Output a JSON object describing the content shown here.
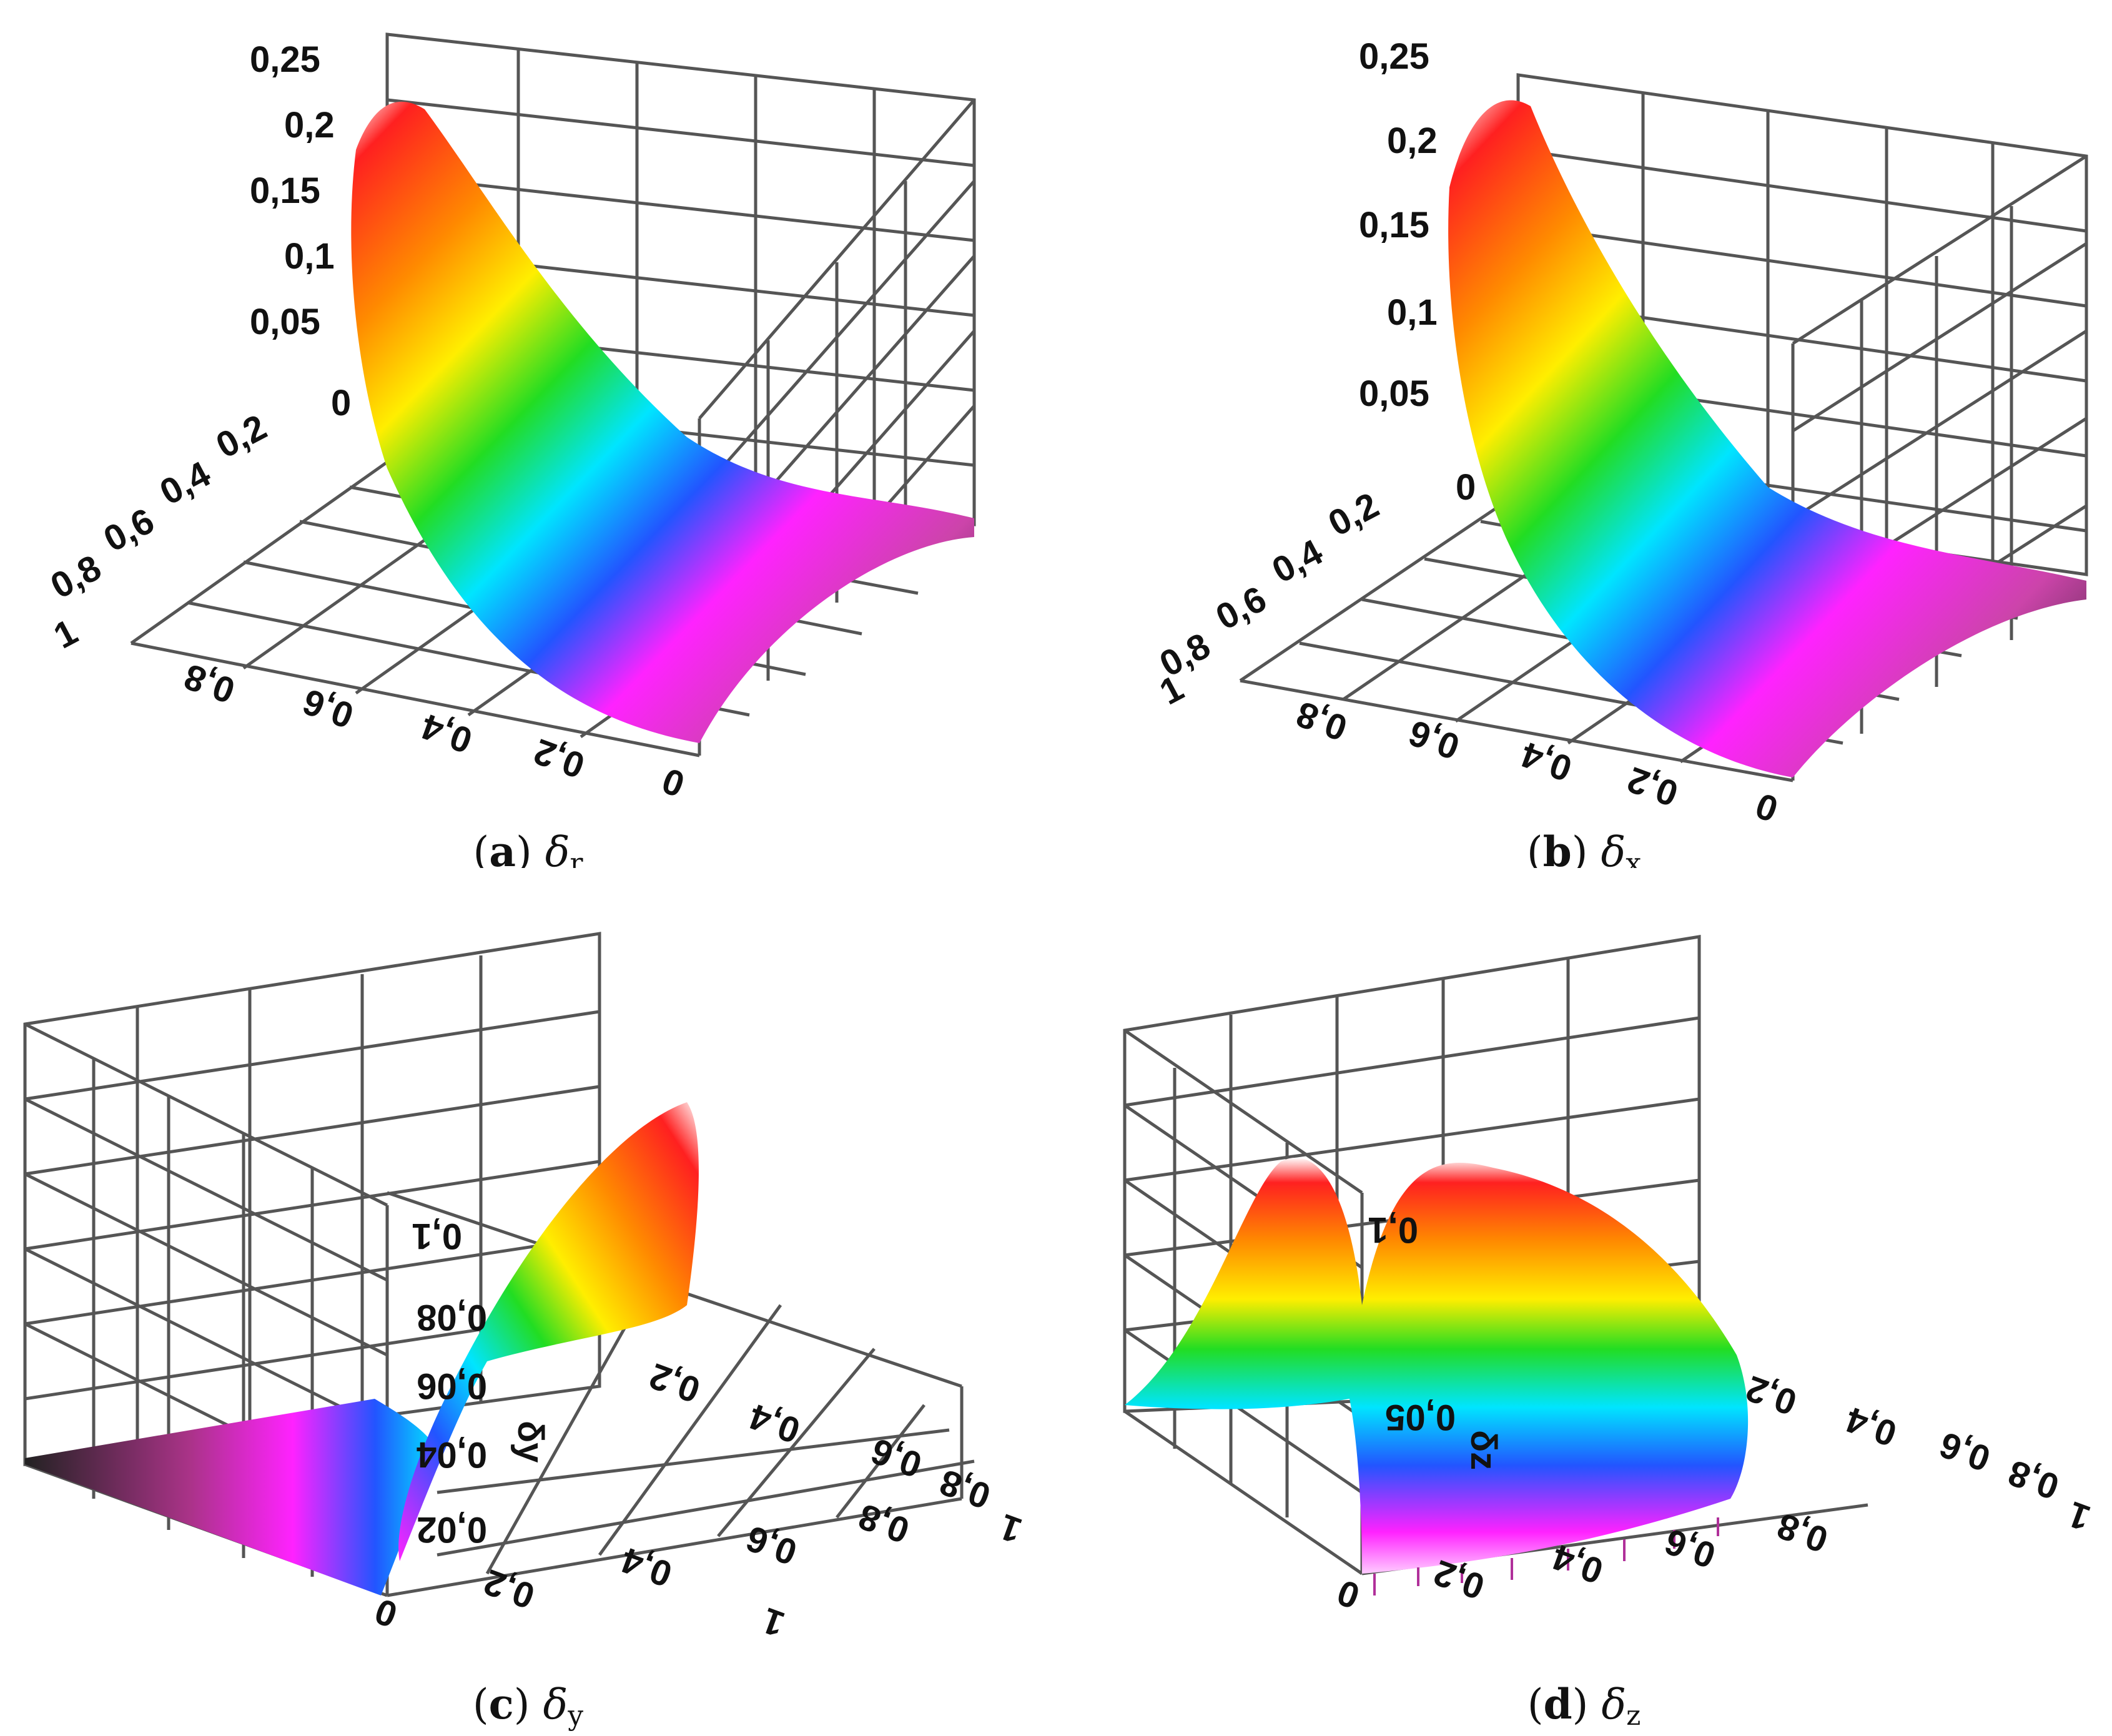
{
  "figure": {
    "panels": [
      {
        "key": "a",
        "tag": "a",
        "symbol": "δ",
        "subscript": "r"
      },
      {
        "key": "b",
        "tag": "b",
        "symbol": "δ",
        "subscript": "x"
      },
      {
        "key": "c",
        "tag": "c",
        "symbol": "δ",
        "subscript": "y"
      },
      {
        "key": "d",
        "tag": "d",
        "symbol": "δ",
        "subscript": "z"
      }
    ]
  },
  "chart_data": [
    {
      "type": "surface",
      "panel": "a",
      "caption": "(a) δr",
      "colormap": "rainbow (red high → black low)",
      "z_ticks": [
        "0",
        "0,05",
        "0,1",
        "0,15",
        "0,2",
        "0,25"
      ],
      "x_ticks": [
        "0,2",
        "0,4",
        "0,6",
        "0,8",
        "1"
      ],
      "y_ticks": [
        "0",
        "0,2",
        "0,4",
        "0,6",
        "0,8"
      ],
      "zlim": [
        0,
        0.25
      ],
      "surface_peak_z": 0.25,
      "grid": true
    },
    {
      "type": "surface",
      "panel": "b",
      "caption": "(b) δx",
      "colormap": "rainbow (red high → black low)",
      "z_ticks": [
        "0",
        "0,05",
        "0,1",
        "0,15",
        "0,2",
        "0,25"
      ],
      "x_ticks": [
        "0,2",
        "0,4",
        "0,6",
        "0,8",
        "1"
      ],
      "y_ticks": [
        "0",
        "0,2",
        "0,4",
        "0,6",
        "0,8"
      ],
      "zlim": [
        0,
        0.25
      ],
      "surface_peak_z": 0.25,
      "grid": true
    },
    {
      "type": "surface",
      "panel": "c",
      "caption": "(c) δy",
      "colormap": "rainbow (red high → black low)",
      "z_ticks": [
        "0,02",
        "0,04",
        "0,06",
        "0,08",
        "0,1"
      ],
      "axis_mark": "δy",
      "x_ticks": [
        "0,2",
        "0,4",
        "0,6",
        "0,8",
        "1"
      ],
      "y_ticks": [
        "0",
        "0,2",
        "0,4",
        "0,6",
        "0,8",
        "1"
      ],
      "zlim": [
        0,
        0.1
      ],
      "grid": true
    },
    {
      "type": "surface",
      "panel": "d",
      "caption": "(d) δz",
      "colormap": "rainbow (red high → black low)",
      "z_ticks": [
        "0,05",
        "0,1"
      ],
      "axis_mark": "δz",
      "x_ticks": [
        "0",
        "0,2",
        "0,4",
        "0,6",
        "0,8"
      ],
      "y_ticks": [
        "0,2",
        "0,4",
        "0,6",
        "0,8",
        "1"
      ],
      "zlim": [
        0,
        0.1
      ],
      "grid": true
    }
  ]
}
